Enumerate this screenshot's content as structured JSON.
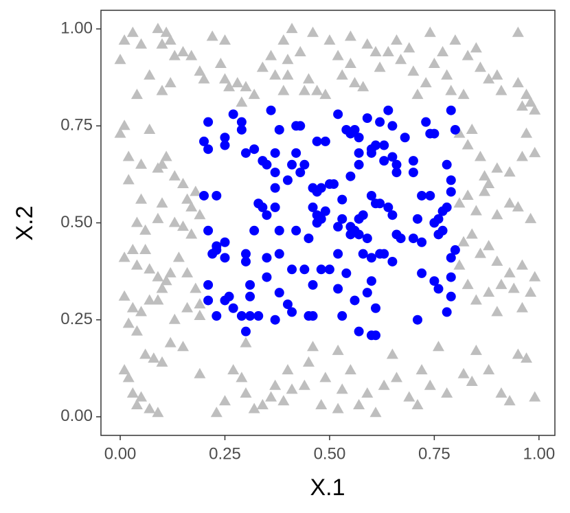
{
  "chart_data": {
    "type": "scatter",
    "x_label": "X.1",
    "y_label": "X.2",
    "xlim": [
      -0.046,
      1.038
    ],
    "ylim": [
      -0.048,
      1.048
    ],
    "xticks": [
      {
        "value": 0,
        "label": "0.00"
      },
      {
        "value": 0.25,
        "label": "0.25"
      },
      {
        "value": 0.5,
        "label": "0.50"
      },
      {
        "value": 0.75,
        "label": "0.75"
      },
      {
        "value": 1,
        "label": "1.00"
      }
    ],
    "yticks": [
      {
        "value": 0,
        "label": "0.00"
      },
      {
        "value": 0.25,
        "label": "0.25"
      },
      {
        "value": 0.5,
        "label": "0.50"
      },
      {
        "value": 0.75,
        "label": "0.75"
      },
      {
        "value": 1,
        "label": "1.00"
      }
    ],
    "grid": false,
    "series": [
      {
        "color": "#bebebe",
        "marker": "triangle",
        "x": [
          0.01,
          0.03,
          0.05,
          0.09,
          0.11,
          0.1,
          0.12,
          0.13,
          0.15,
          0.17,
          0.19,
          0.2,
          0.22,
          0.25,
          0.24,
          0.25,
          0.26,
          0.28,
          0.3,
          0.29,
          0.32,
          0.34,
          0.36,
          0.37,
          0.4,
          0.39,
          0.4,
          0.39,
          0.43,
          0.44,
          0.45,
          0.47,
          0.49,
          0.5,
          0.52,
          0.53,
          0.55,
          0.56,
          0.58,
          0.59,
          0.61,
          0.62,
          0.64,
          0.66,
          0.67,
          0.69,
          0.7,
          0.71,
          0.73,
          0.75,
          0.77,
          0.78,
          0.79,
          0.82,
          0.83,
          0.85,
          0.86,
          0.88,
          0.9,
          0.91,
          0.95,
          0.97,
          0.98,
          0.96,
          0.99,
          0.41,
          0.46,
          0.55,
          0.74,
          0.8,
          0.95,
          0.0,
          0.07,
          0.1,
          0.04,
          0.12,
          0.0,
          0.01,
          0.02,
          0.02,
          0.05,
          0.07,
          0.09,
          0.1,
          0.11,
          0.13,
          0.15,
          0.16,
          0.17,
          0.18,
          0.19,
          0.05,
          0.04,
          0.06,
          0.09,
          0.1,
          0.13,
          0.15,
          0.17,
          0.01,
          0.03,
          0.04,
          0.06,
          0.07,
          0.09,
          0.11,
          0.12,
          0.14,
          0.16,
          0.18,
          0.19,
          0.01,
          0.03,
          0.05,
          0.07,
          0.09,
          0.1,
          0.13,
          0.16,
          0.19,
          0.02,
          0.04,
          0.81,
          0.83,
          0.84,
          0.86,
          0.87,
          0.88,
          0.9,
          0.93,
          0.96,
          0.97,
          0.99,
          0.81,
          0.83,
          0.85,
          0.87,
          0.9,
          0.93,
          0.95,
          0.98,
          0.82,
          0.84,
          0.86,
          0.88,
          0.9,
          0.93,
          0.96,
          0.99,
          0.81,
          0.83,
          0.85,
          0.88,
          0.9,
          0.91,
          0.94,
          0.96,
          0.98,
          0.01,
          0.02,
          0.03,
          0.04,
          0.05,
          0.07,
          0.09,
          0.06,
          0.08,
          0.1,
          0.12,
          0.15,
          0.19,
          0.23,
          0.25,
          0.27,
          0.29,
          0.3,
          0.32,
          0.34,
          0.36,
          0.37,
          0.39,
          0.4,
          0.41,
          0.44,
          0.45,
          0.48,
          0.49,
          0.52,
          0.53,
          0.55,
          0.57,
          0.59,
          0.61,
          0.63,
          0.65,
          0.66,
          0.69,
          0.71,
          0.72,
          0.74,
          0.76,
          0.78,
          0.82,
          0.84,
          0.85,
          0.88,
          0.91,
          0.93,
          0.95,
          0.97,
          0.99,
          0.52,
          0.46,
          0.3
        ],
        "values": [
          0.97,
          0.99,
          0.96,
          1.0,
          0.99,
          0.96,
          0.97,
          0.93,
          0.94,
          0.93,
          0.89,
          0.87,
          0.98,
          0.97,
          0.91,
          0.87,
          0.85,
          0.86,
          0.85,
          0.81,
          0.83,
          0.9,
          0.93,
          0.88,
          0.88,
          0.84,
          0.92,
          0.97,
          0.94,
          0.84,
          0.87,
          0.84,
          0.83,
          0.97,
          0.93,
          0.88,
          0.91,
          0.86,
          0.85,
          0.96,
          0.94,
          0.9,
          0.94,
          0.97,
          0.92,
          0.95,
          0.89,
          0.83,
          0.86,
          0.91,
          0.94,
          0.88,
          0.84,
          0.83,
          0.93,
          0.95,
          0.9,
          0.87,
          0.88,
          0.84,
          0.86,
          0.83,
          0.81,
          0.8,
          0.79,
          1.0,
          0.99,
          0.98,
          0.99,
          0.97,
          0.99,
          0.92,
          0.88,
          0.84,
          0.83,
          0.86,
          0.73,
          0.75,
          0.67,
          0.61,
          0.65,
          0.74,
          0.64,
          0.65,
          0.67,
          0.62,
          0.6,
          0.56,
          0.54,
          0.58,
          0.52,
          0.56,
          0.5,
          0.48,
          0.51,
          0.55,
          0.5,
          0.49,
          0.47,
          0.41,
          0.43,
          0.39,
          0.43,
          0.38,
          0.36,
          0.35,
          0.37,
          0.41,
          0.37,
          0.33,
          0.29,
          0.31,
          0.28,
          0.27,
          0.3,
          0.3,
          0.33,
          0.25,
          0.28,
          0.26,
          0.24,
          0.22,
          0.73,
          0.7,
          0.74,
          0.67,
          0.62,
          0.6,
          0.64,
          0.63,
          0.67,
          0.73,
          0.68,
          0.55,
          0.57,
          0.53,
          0.58,
          0.52,
          0.55,
          0.54,
          0.51,
          0.45,
          0.47,
          0.42,
          0.44,
          0.4,
          0.37,
          0.39,
          0.36,
          0.39,
          0.34,
          0.3,
          0.32,
          0.27,
          0.34,
          0.33,
          0.28,
          0.32,
          0.12,
          0.1,
          0.06,
          0.03,
          0.05,
          0.02,
          0.01,
          0.16,
          0.15,
          0.14,
          0.19,
          0.18,
          0.11,
          0.01,
          0.04,
          0.12,
          0.1,
          0.06,
          0.02,
          0.03,
          0.05,
          0.08,
          0.04,
          0.12,
          0.07,
          0.08,
          0.14,
          0.03,
          0.1,
          0.02,
          0.07,
          0.12,
          0.03,
          0.06,
          0.01,
          0.08,
          0.16,
          0.1,
          0.05,
          0.03,
          0.12,
          0.08,
          0.18,
          0.06,
          0.11,
          0.09,
          0.17,
          0.12,
          0.06,
          0.04,
          0.16,
          0.15,
          0.05,
          0.17,
          0.18,
          0.19
        ]
      },
      {
        "color": "#0000ff",
        "marker": "circle",
        "x": [
          0.21,
          0.2,
          0.21,
          0.25,
          0.25,
          0.27,
          0.29,
          0.29,
          0.3,
          0.32,
          0.34,
          0.35,
          0.36,
          0.37,
          0.38,
          0.37,
          0.41,
          0.42,
          0.43,
          0.42,
          0.44,
          0.43,
          0.4,
          0.47,
          0.49,
          0.52,
          0.54,
          0.55,
          0.56,
          0.57,
          0.57,
          0.57,
          0.59,
          0.6,
          0.6,
          0.61,
          0.62,
          0.63,
          0.63,
          0.64,
          0.65,
          0.65,
          0.66,
          0.66,
          0.68,
          0.7,
          0.7,
          0.73,
          0.74,
          0.75,
          0.79,
          0.8,
          0.78,
          0.79,
          0.79,
          0.2,
          0.23,
          0.21,
          0.23,
          0.22,
          0.23,
          0.25,
          0.25,
          0.3,
          0.3,
          0.32,
          0.33,
          0.34,
          0.35,
          0.37,
          0.37,
          0.38,
          0.35,
          0.38,
          0.41,
          0.42,
          0.45,
          0.46,
          0.47,
          0.48,
          0.5,
          0.51,
          0.46,
          0.47,
          0.48,
          0.47,
          0.49,
          0.52,
          0.53,
          0.55,
          0.55,
          0.56,
          0.57,
          0.58,
          0.57,
          0.53,
          0.55,
          0.6,
          0.61,
          0.62,
          0.64,
          0.65,
          0.66,
          0.67,
          0.7,
          0.71,
          0.72,
          0.72,
          0.74,
          0.75,
          0.76,
          0.77,
          0.78,
          0.76,
          0.77,
          0.79,
          0.8,
          0.58,
          0.6,
          0.62,
          0.63,
          0.65,
          0.59,
          0.52,
          0.21,
          0.21,
          0.23,
          0.25,
          0.26,
          0.27,
          0.29,
          0.3,
          0.31,
          0.31,
          0.31,
          0.33,
          0.35,
          0.37,
          0.38,
          0.4,
          0.41,
          0.44,
          0.46,
          0.45,
          0.46,
          0.48,
          0.5,
          0.52,
          0.53,
          0.54,
          0.56,
          0.57,
          0.59,
          0.6,
          0.6,
          0.61,
          0.61,
          0.71,
          0.72,
          0.75,
          0.76,
          0.78,
          0.79,
          0.79
        ],
        "values": [
          0.76,
          0.71,
          0.69,
          0.72,
          0.7,
          0.78,
          0.76,
          0.74,
          0.68,
          0.69,
          0.66,
          0.65,
          0.79,
          0.68,
          0.74,
          0.63,
          0.65,
          0.75,
          0.75,
          0.68,
          0.65,
          0.63,
          0.61,
          0.71,
          0.71,
          0.78,
          0.74,
          0.73,
          0.74,
          0.72,
          0.68,
          0.65,
          0.77,
          0.68,
          0.69,
          0.7,
          0.76,
          0.7,
          0.66,
          0.79,
          0.75,
          0.67,
          0.65,
          0.63,
          0.72,
          0.66,
          0.63,
          0.76,
          0.73,
          0.73,
          0.79,
          0.74,
          0.65,
          0.61,
          0.58,
          0.57,
          0.57,
          0.48,
          0.44,
          0.42,
          0.43,
          0.45,
          0.41,
          0.42,
          0.4,
          0.48,
          0.55,
          0.54,
          0.52,
          0.59,
          0.54,
          0.48,
          0.41,
          0.42,
          0.38,
          0.48,
          0.46,
          0.59,
          0.58,
          0.59,
          0.6,
          0.6,
          0.54,
          0.52,
          0.51,
          0.5,
          0.53,
          0.49,
          0.51,
          0.49,
          0.47,
          0.48,
          0.51,
          0.52,
          0.47,
          0.56,
          0.62,
          0.57,
          0.55,
          0.55,
          0.54,
          0.52,
          0.47,
          0.46,
          0.46,
          0.51,
          0.57,
          0.45,
          0.57,
          0.5,
          0.51,
          0.53,
          0.54,
          0.47,
          0.48,
          0.41,
          0.43,
          0.42,
          0.41,
          0.42,
          0.42,
          0.4,
          0.46,
          0.42,
          0.34,
          0.3,
          0.26,
          0.3,
          0.31,
          0.28,
          0.26,
          0.22,
          0.26,
          0.34,
          0.31,
          0.26,
          0.36,
          0.25,
          0.32,
          0.29,
          0.27,
          0.38,
          0.34,
          0.26,
          0.26,
          0.38,
          0.38,
          0.33,
          0.26,
          0.37,
          0.3,
          0.22,
          0.32,
          0.35,
          0.21,
          0.21,
          0.28,
          0.25,
          0.37,
          0.35,
          0.33,
          0.27,
          0.31,
          0.36
        ]
      }
    ]
  }
}
